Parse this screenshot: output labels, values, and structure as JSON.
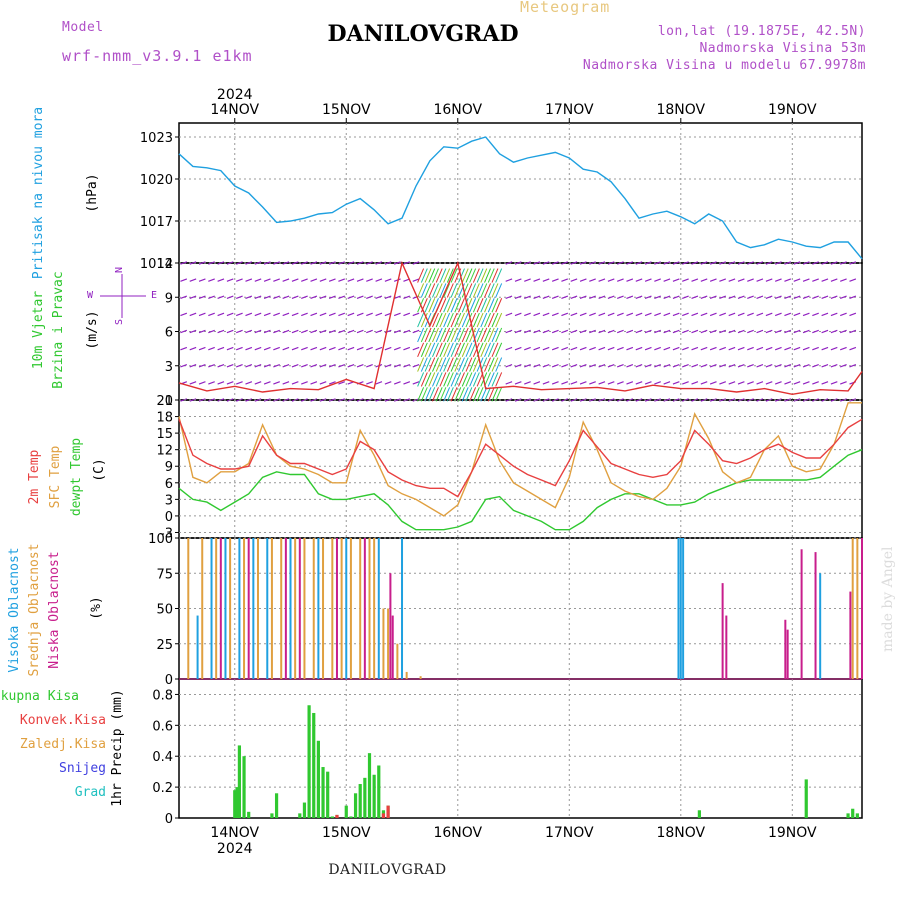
{
  "header": {
    "model_label": "Model",
    "model_name": "wrf-nmm_v3.9.1  e1km",
    "meteogram_label": "Meteogram",
    "station": "DANILOVGRAD",
    "lonlat": "lon,lat (19.1875E, 42.5N)",
    "elevation": "Nadmorska Visina 53m",
    "model_elevation": "Nadmorska Visina u modelu 67.9978m",
    "footer_station": "DANILOVGRAD",
    "watermark": "made by Angel"
  },
  "colors": {
    "pressure": "#1fa0e0",
    "wind": "#9020c0",
    "wind_speed": "#e03030",
    "temp2m": "#e84040",
    "sfc_temp": "#e0a040",
    "dewpoint": "#30c830",
    "high_cloud": "#1fa0e0",
    "mid_cloud": "#e0a040",
    "low_cloud": "#c81e8c",
    "precip_total": "#30c830",
    "precip_conv": "#e84040",
    "snow": "#4040e0",
    "grid_line": "#999999"
  },
  "chart_data": [
    {
      "type": "line",
      "title": "Pritisak na nivou mora",
      "ylabel": "(hPa)",
      "yticks": [
        "1023",
        "1020",
        "1017",
        "1014"
      ],
      "ylim": [
        1014,
        1024
      ],
      "top_year": "2024",
      "day_labels": [
        "14NOV",
        "15NOV",
        "16NOV",
        "17NOV",
        "18NOV",
        "19NOV"
      ],
      "x_hours": [
        0,
        3,
        6,
        9,
        12,
        15,
        18,
        21,
        24,
        27,
        30,
        33,
        36,
        39,
        42,
        45,
        48,
        51,
        54,
        57,
        60,
        63,
        66,
        69,
        72,
        75,
        78,
        81,
        84,
        87,
        90,
        93,
        96,
        99,
        102,
        105,
        108,
        111,
        114,
        117,
        120,
        123,
        126,
        129,
        132,
        135,
        138,
        141,
        144,
        147
      ],
      "series": [
        {
          "name": "pressure",
          "values": [
            1021.8,
            1020.9,
            1020.8,
            1020.6,
            1019.5,
            1019.0,
            1018.0,
            1016.9,
            1017.0,
            1017.2,
            1017.5,
            1017.6,
            1018.2,
            1018.6,
            1017.8,
            1016.8,
            1017.2,
            1019.5,
            1021.3,
            1022.3,
            1022.2,
            1022.7,
            1023.0,
            1021.8,
            1021.2,
            1021.5,
            1021.7,
            1021.9,
            1021.5,
            1020.7,
            1020.5,
            1019.8,
            1018.6,
            1017.2,
            1017.5,
            1017.7,
            1017.3,
            1016.8,
            1017.5,
            1017.0,
            1015.5,
            1015.1,
            1015.3,
            1015.7,
            1015.5,
            1015.2,
            1015.1,
            1015.5,
            1015.5,
            1014.3
          ]
        }
      ]
    },
    {
      "type": "line",
      "title": "10m Vjetar Brzina i Pravac",
      "ylabel": "(m/s)",
      "compass_labels": {
        "north": "N",
        "west": "W",
        "east": "E",
        "south": "S"
      },
      "yticks": [
        "12",
        "9",
        "6",
        "3",
        "0"
      ],
      "ylim": [
        0,
        12
      ],
      "x_hours": [
        0,
        6,
        12,
        18,
        24,
        30,
        36,
        42,
        48,
        54,
        60,
        66,
        72,
        78,
        84,
        90,
        96,
        102,
        108,
        114,
        120,
        126,
        132,
        138,
        144,
        147
      ],
      "series": [
        {
          "name": "speed",
          "values": [
            1.5,
            0.8,
            1.2,
            0.7,
            1.0,
            0.9,
            1.8,
            1.0,
            12.0,
            6.5,
            12.0,
            1.0,
            1.2,
            0.9,
            1.0,
            1.1,
            0.8,
            1.3,
            1.0,
            1.0,
            0.7,
            1.0,
            0.5,
            0.9,
            0.8,
            2.5
          ]
        }
      ]
    },
    {
      "type": "line",
      "title": "2m Temp",
      "ylabel": "(C)",
      "yticks": [
        "21",
        "18",
        "15",
        "12",
        "9",
        "6",
        "3",
        "0",
        "-3"
      ],
      "ylim": [
        -4,
        21
      ],
      "x_hours": [
        0,
        3,
        6,
        9,
        12,
        15,
        18,
        21,
        24,
        27,
        30,
        33,
        36,
        39,
        42,
        45,
        48,
        51,
        54,
        57,
        60,
        63,
        66,
        69,
        72,
        75,
        78,
        81,
        84,
        87,
        90,
        93,
        96,
        99,
        102,
        105,
        108,
        111,
        114,
        117,
        120,
        123,
        126,
        129,
        132,
        135,
        138,
        141,
        144,
        147
      ],
      "legend": [
        "2m Temp",
        "SFC Temp",
        "dewpt Temp"
      ],
      "series": [
        {
          "name": "2m Temp",
          "values": [
            17.5,
            11,
            9.5,
            8.5,
            8.5,
            9,
            14.5,
            11,
            9.5,
            9.5,
            8.5,
            7.5,
            8.5,
            13.5,
            12,
            8,
            6.5,
            5.5,
            5,
            5,
            3.5,
            8,
            13,
            11,
            9,
            7.5,
            6.5,
            5.5,
            10,
            15.5,
            12.5,
            9.5,
            8.5,
            7.5,
            7,
            7.5,
            10,
            15.5,
            13,
            10,
            9.5,
            10.5,
            12,
            13,
            11.5,
            10.5,
            10.5,
            13,
            16,
            17.5
          ]
        },
        {
          "name": "SFC Temp",
          "values": [
            18,
            7,
            6,
            8,
            8,
            9.5,
            16.5,
            11,
            9,
            8.5,
            7.5,
            6,
            6,
            15.5,
            11,
            5.5,
            4,
            3,
            1.5,
            0,
            2,
            8,
            16.5,
            10,
            6,
            4.5,
            3,
            1.5,
            7,
            17,
            12,
            6,
            4.5,
            3.5,
            3,
            5,
            9,
            18.5,
            14,
            8,
            6,
            7,
            12,
            14.5,
            9,
            8,
            8.5,
            13,
            20.5,
            20.5
          ]
        },
        {
          "name": "dewpt Temp",
          "values": [
            5,
            3,
            2.5,
            1,
            2.5,
            4,
            7,
            8,
            7.5,
            7.5,
            4,
            3,
            3,
            3.5,
            4,
            2,
            -1,
            -2.5,
            -2.5,
            -2.5,
            -2,
            -1,
            3,
            3.5,
            1,
            0,
            -1,
            -2.5,
            -2.5,
            -1,
            1.5,
            3,
            4,
            4,
            3,
            2,
            2,
            2.5,
            4,
            5,
            6,
            6.5,
            6.5,
            6.5,
            6.5,
            6.5,
            7,
            9,
            11,
            12
          ]
        }
      ]
    },
    {
      "type": "bar",
      "title": "Visoka Oblacnost Srednja Oblacnost Niska Oblacnost",
      "ylabel": "(%)",
      "yticks": [
        "100",
        "75",
        "50",
        "25",
        "0"
      ],
      "ylim": [
        0,
        100
      ],
      "legend": [
        "Visoka Oblacnost",
        "Srednja Oblacnost",
        "Niska Oblacnost"
      ],
      "series": [
        {
          "name": "Visoka Oblacnost",
          "x": [
            4,
            7,
            10,
            13,
            16,
            19,
            24,
            30,
            36,
            43,
            48,
            107.5,
            108,
            108.5,
            138
          ],
          "values": [
            45,
            100,
            100,
            100,
            100,
            100,
            100,
            100,
            100,
            100,
            100,
            100,
            100,
            100,
            75
          ]
        },
        {
          "name": "Srednja Oblacnost",
          "x": [
            2,
            5,
            8,
            11,
            14,
            17,
            20,
            22,
            25,
            27,
            29,
            31,
            33,
            35,
            37,
            39,
            41,
            42,
            44,
            45,
            47,
            49,
            52,
            145,
            146
          ],
          "values": [
            100,
            100,
            100,
            100,
            100,
            100,
            100,
            100,
            100,
            100,
            100,
            100,
            100,
            100,
            100,
            100,
            100,
            100,
            50,
            50,
            25,
            5,
            2,
            100,
            100
          ]
        },
        {
          "name": "Niska Oblacnost",
          "x": [
            9,
            15,
            23,
            26,
            34,
            40,
            45.5,
            46,
            117,
            117.8,
            130.5,
            131,
            134,
            137,
            144.5,
            147
          ],
          "values": [
            100,
            100,
            100,
            100,
            100,
            100,
            75,
            45,
            68,
            45,
            42,
            35,
            92,
            90,
            62,
            100
          ]
        }
      ]
    },
    {
      "type": "bar",
      "title": "1hr Precip (mm)",
      "ylabel": "1hr Precip (mm)",
      "yticks": [
        "0.8",
        "0.6",
        "0.4",
        "0.2",
        "0"
      ],
      "ylim": [
        0,
        0.9
      ],
      "bottom_year": "2024",
      "day_labels": [
        "14NOV",
        "15NOV",
        "16NOV",
        "17NOV",
        "18NOV",
        "19NOV"
      ],
      "legend": [
        "Ukupna Kisa",
        "Konvek.Kisa",
        "Zaledj.Kisa",
        "Snijeg",
        "Grad"
      ],
      "series": [
        {
          "name": "Ukupna Kisa",
          "x": [
            12,
            12.5,
            13,
            14,
            15,
            16,
            20,
            21,
            26,
            27,
            28,
            29,
            30,
            31,
            32,
            33,
            34,
            36,
            37,
            38,
            39,
            40,
            41,
            42,
            43,
            44,
            45,
            112,
            135,
            144,
            145,
            146
          ],
          "values": [
            0.18,
            0.2,
            0.47,
            0.4,
            0.04,
            0.0,
            0.03,
            0.16,
            0.03,
            0.1,
            0.73,
            0.68,
            0.5,
            0.33,
            0.3,
            0.01,
            0.02,
            0.08,
            0.01,
            0.16,
            0.22,
            0.26,
            0.42,
            0.28,
            0.34,
            0.05,
            0.08,
            0.05,
            0.25,
            0.03,
            0.06,
            0.03
          ]
        },
        {
          "name": "Konvek.Kisa",
          "x": [
            34,
            44,
            45
          ],
          "values": [
            0.02,
            0.03,
            0.08
          ]
        }
      ]
    }
  ]
}
